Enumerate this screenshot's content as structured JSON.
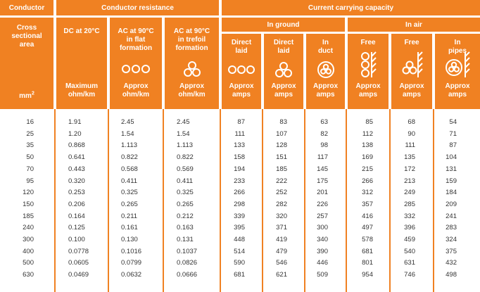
{
  "groups": {
    "conductor": "Conductor",
    "conductor_resistance": "Conductor resistance",
    "current_carrying_capacity": "Current carrying capacity",
    "in_ground": "In ground",
    "in_air": "In air"
  },
  "columns": {
    "area": {
      "name": "Cross\nsectional\narea",
      "unit": "mm2"
    },
    "dc": {
      "name": "DC at 20°C",
      "sub": "Maximum\nohm/km"
    },
    "ac_flat": {
      "name": "AC at 90°C\nin flat\nformation",
      "sub": "Approx\nohm/km",
      "icon": "three-circles-flat-icon"
    },
    "ac_trefoil": {
      "name": "AC at 90°C\nin trefoil\nformation",
      "sub": "Approx\nohm/km",
      "icon": "three-circles-trefoil-icon"
    },
    "direct_flat": {
      "name": "Direct\nlaid",
      "sub": "Approx\namps",
      "icon": "three-circles-flat-icon"
    },
    "direct_trefoil": {
      "name": "Direct\nlaid",
      "sub": "Approx\namps",
      "icon": "three-circles-trefoil-icon"
    },
    "in_duct": {
      "name": "In\nduct",
      "sub": "Approx\namps",
      "icon": "cables-in-duct-icon"
    },
    "free_vertical": {
      "name": "Free",
      "sub": "Approx\namps",
      "icon": "cables-vertical-wall-icon"
    },
    "free_trefoil": {
      "name": "Free",
      "sub": "Approx\namps",
      "icon": "cables-trefoil-wall-icon"
    },
    "in_pipes": {
      "name": "In\npipes",
      "sub": "Approx\namps",
      "icon": "cables-in-pipe-wall-icon"
    }
  },
  "rows": {
    "area": [
      "16",
      "25",
      "35",
      "50",
      "70",
      "95",
      "120",
      "150",
      "185",
      "240",
      "300",
      "400",
      "500",
      "630"
    ],
    "dc": [
      "1.91",
      "1.20",
      "0.868",
      "0.641",
      "0.443",
      "0.320",
      "0.253",
      "0.206",
      "0.164",
      "0.125",
      "0.100",
      "0.0778",
      "0.0605",
      "0.0469"
    ],
    "ac_flat": [
      "2.45",
      "1.54",
      "1.113",
      "0.822",
      "0.568",
      "0.411",
      "0.325",
      "0.265",
      "0.211",
      "0.161",
      "0.130",
      "0.1016",
      "0.0799",
      "0.0632"
    ],
    "ac_trefoil": [
      "2.45",
      "1.54",
      "1.113",
      "0.822",
      "0.569",
      "0.411",
      "0.325",
      "0.265",
      "0.212",
      "0.163",
      "0.131",
      "0.1037",
      "0.0826",
      "0.0666"
    ],
    "direct_flat": [
      "87",
      "111",
      "133",
      "158",
      "194",
      "233",
      "266",
      "298",
      "339",
      "395",
      "448",
      "514",
      "590",
      "681"
    ],
    "direct_trefoil": [
      "83",
      "107",
      "128",
      "151",
      "185",
      "222",
      "252",
      "282",
      "320",
      "371",
      "419",
      "479",
      "546",
      "621"
    ],
    "in_duct": [
      "63",
      "82",
      "98",
      "117",
      "145",
      "175",
      "201",
      "226",
      "257",
      "300",
      "340",
      "390",
      "446",
      "509"
    ],
    "free_vertical": [
      "85",
      "112",
      "138",
      "169",
      "215",
      "266",
      "312",
      "357",
      "416",
      "497",
      "578",
      "681",
      "801",
      "954"
    ],
    "free_trefoil": [
      "68",
      "90",
      "111",
      "135",
      "172",
      "213",
      "249",
      "285",
      "332",
      "396",
      "459",
      "540",
      "631",
      "746"
    ],
    "in_pipes": [
      "54",
      "71",
      "87",
      "104",
      "131",
      "159",
      "184",
      "209",
      "241",
      "283",
      "324",
      "375",
      "432",
      "498"
    ]
  }
}
